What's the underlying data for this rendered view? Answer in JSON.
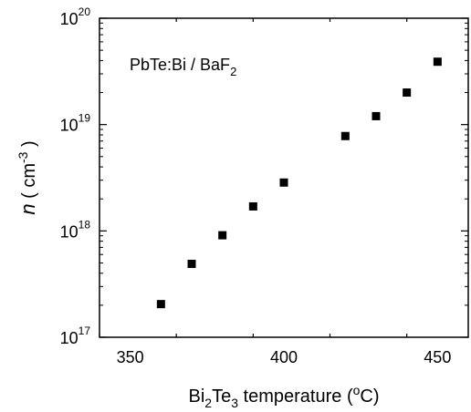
{
  "chart_data": {
    "type": "scatter",
    "annotation": {
      "main": "PbTe:Bi / BaF",
      "sub": "2"
    },
    "xlabel": {
      "pre": "Bi",
      "sub1": "2",
      "mid": "Te",
      "sub2": "3",
      "post": " temperature (",
      "sup": "o",
      "unit": "C)"
    },
    "ylabel": {
      "var": "n",
      "open": "  ( cm",
      "sup": "-3",
      "close": " )"
    },
    "xlim": [
      340,
      460
    ],
    "ylim": [
      1e+17,
      1e+20
    ],
    "yscale": "log",
    "x_ticks": [
      {
        "value": 350,
        "label": "350"
      },
      {
        "value": 400,
        "label": "400"
      },
      {
        "value": 450,
        "label": "450"
      }
    ],
    "y_ticks": [
      {
        "value": 1e+17,
        "base": "10",
        "exp": "17"
      },
      {
        "value": 1e+18,
        "base": "10",
        "exp": "18"
      },
      {
        "value": 1e+19,
        "base": "10",
        "exp": "19"
      },
      {
        "value": 1e+20,
        "base": "10",
        "exp": "20"
      }
    ],
    "marker": {
      "shape": "square",
      "color": "#000000"
    },
    "points": [
      {
        "x": 360,
        "y": 2.05e+17
      },
      {
        "x": 370,
        "y": 4.9e+17
      },
      {
        "x": 380,
        "y": 9.1e+17
      },
      {
        "x": 390,
        "y": 1.7e+18
      },
      {
        "x": 400,
        "y": 2.85e+18
      },
      {
        "x": 420,
        "y": 7.8e+18
      },
      {
        "x": 430,
        "y": 1.2e+19
      },
      {
        "x": 440,
        "y": 2e+19
      },
      {
        "x": 450,
        "y": 3.9e+19
      }
    ]
  }
}
